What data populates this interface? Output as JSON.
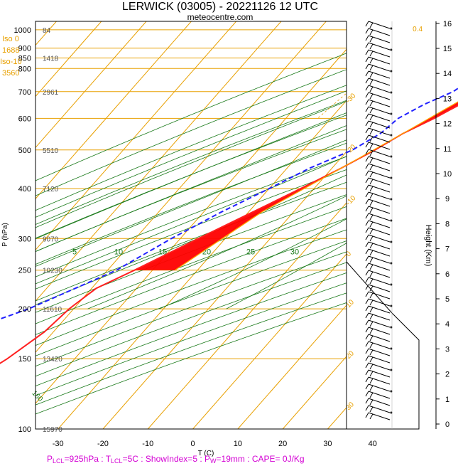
{
  "chart_data": {
    "type": "line",
    "title": "LERWICK (03005) - 20221126 12 UTC",
    "subtitle": "meteocentre.com",
    "xlabel": "T (C)",
    "ylabel": "P (hPa)",
    "y2label": "Height (Km)",
    "xlim": [
      -35,
      50
    ],
    "ylim": [
      1050,
      100
    ],
    "x_ticks": [
      "-30",
      "-20",
      "-10",
      "0",
      "10",
      "20",
      "30",
      "40"
    ],
    "pressure_levels": [
      "100",
      "150",
      "200",
      "250",
      "300",
      "400",
      "500",
      "600",
      "700",
      "800",
      "850",
      "900",
      "1000"
    ],
    "heights_m": [
      "15970",
      "13420",
      "11610",
      "10230",
      "9070",
      "7120",
      "5510",
      "2961",
      "1418",
      "84"
    ],
    "height_km_ticks": [
      "0",
      "1",
      "2",
      "3",
      "4",
      "5",
      "6",
      "7",
      "8",
      "9",
      "10",
      "11",
      "12",
      "13",
      "14",
      "15",
      "16"
    ],
    "freezing_levels": {
      "iso0_label": "Iso 0",
      "iso0_value": "1688",
      "iso10_label": "Iso-10",
      "iso10_value": "3560"
    },
    "mixing_ratio_labels": [
      "0.4",
      "1",
      "2",
      "3",
      "5",
      "8",
      "12",
      "20"
    ],
    "dry_adiabat_labels": [
      "50",
      "60",
      "70",
      "80",
      "90",
      "100",
      "110",
      "120",
      "130",
      "140",
      "150",
      "160",
      "40",
      "30",
      "20",
      "10",
      "0",
      "-10",
      "-20",
      "-30"
    ],
    "moist_adiabat_labels": [
      "5",
      "10",
      "15",
      "20",
      "25",
      "30"
    ],
    "isotherm_labels": [
      "30",
      "20",
      "10",
      "0",
      "-10",
      "-20",
      "-30"
    ],
    "series": [
      {
        "name": "Temperature",
        "color": "#ff2020",
        "points": [
          [
            11,
            1000
          ],
          [
            9,
            950
          ],
          [
            6.5,
            900
          ],
          [
            5,
            850
          ],
          [
            2,
            800
          ],
          [
            -2,
            700
          ],
          [
            -4,
            650
          ],
          [
            -7,
            600
          ],
          [
            -11,
            550
          ],
          [
            -14,
            500
          ],
          [
            -18,
            450
          ],
          [
            -23,
            400
          ],
          [
            -29,
            350
          ],
          [
            -36,
            300
          ],
          [
            -44,
            250
          ],
          [
            -49,
            225
          ],
          [
            -51,
            200
          ],
          [
            -52,
            175
          ],
          [
            -55,
            150
          ],
          [
            -60,
            125
          ],
          [
            -65,
            110
          ],
          [
            -67,
            100
          ]
        ]
      },
      {
        "name": "Dewpoint",
        "color": "#2020ff",
        "points": [
          [
            9,
            1000
          ],
          [
            7,
            950
          ],
          [
            3,
            900
          ],
          [
            2,
            850
          ],
          [
            -5,
            800
          ],
          [
            -8,
            700
          ],
          [
            -12,
            650
          ],
          [
            -15,
            600
          ],
          [
            -16,
            550
          ],
          [
            -19,
            500
          ],
          [
            -25,
            450
          ],
          [
            -30,
            400
          ],
          [
            -36,
            350
          ],
          [
            -42,
            300
          ],
          [
            -48,
            250
          ],
          [
            -60,
            200
          ],
          [
            -70,
            175
          ],
          [
            -76,
            150
          ],
          [
            -80,
            125
          ],
          [
            -85,
            110
          ],
          [
            -88,
            100
          ]
        ]
      },
      {
        "name": "Parcel",
        "color": "#ffa500",
        "points": [
          [
            11,
            1000
          ],
          [
            5,
            925
          ],
          [
            3,
            850
          ],
          [
            -3,
            700
          ],
          [
            -11,
            550
          ],
          [
            -18,
            450
          ],
          [
            -27,
            350
          ],
          [
            -35,
            250
          ]
        ]
      }
    ],
    "footer": {
      "p_lcl": "925hPa",
      "t_lcl": "5C",
      "showindex": "5",
      "pw": "19mm",
      "cape": "0J/Kg"
    },
    "colors": {
      "isobar": "#e8a000",
      "isotherm": "#e8a000",
      "dry_adiabat": "#1a7a1a",
      "moist_adiabat": "#1a7a1a",
      "mixing_ratio": "#e8a000",
      "cape_fill": "#00cc00",
      "cin_fill": "#ff0000",
      "freezing": "#e8a000",
      "footer": "#d400d4"
    },
    "grid": true,
    "wind_barbs": true
  }
}
